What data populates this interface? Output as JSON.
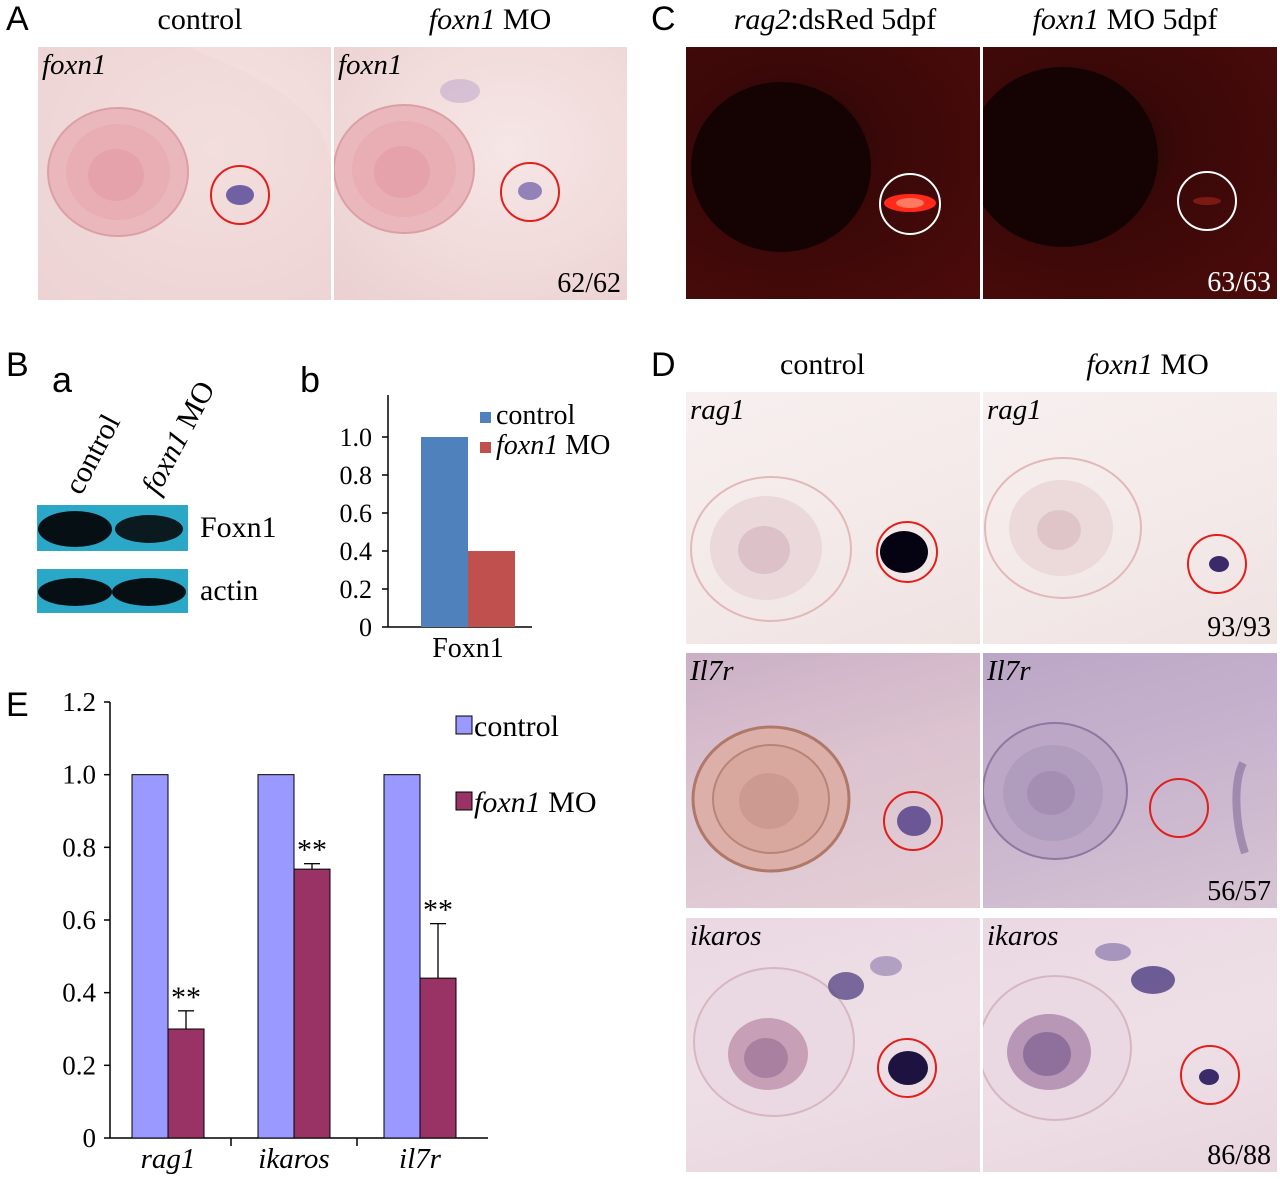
{
  "panelA": {
    "letter": "A",
    "headers": [
      {
        "gene": "",
        "rest": "control"
      },
      {
        "gene": "foxn1",
        "rest": " MO"
      }
    ],
    "images": [
      {
        "label": "foxn1",
        "count": ""
      },
      {
        "label": "foxn1",
        "count": "62/62"
      }
    ]
  },
  "panelB": {
    "letter": "B",
    "sub_a": "a",
    "sub_b": "b",
    "lanes": [
      {
        "gene": "",
        "rest": "control"
      },
      {
        "gene": "foxn1",
        "rest": " MO"
      }
    ],
    "bands": [
      "Foxn1",
      "actin"
    ]
  },
  "panelC": {
    "letter": "C",
    "headers": [
      {
        "gene": "rag2",
        "rest": ":dsRed 5dpf"
      },
      {
        "gene": "foxn1",
        "rest": " MO 5dpf"
      }
    ],
    "count": "63/63"
  },
  "panelD": {
    "letter": "D",
    "headers": [
      {
        "gene": "",
        "rest": "control"
      },
      {
        "gene": "foxn1",
        "rest": " MO"
      }
    ],
    "rows": [
      {
        "label": "rag1",
        "count": "93/93"
      },
      {
        "label": "Il7r",
        "count": "56/57"
      },
      {
        "label": "ikaros",
        "count": "86/88"
      }
    ]
  },
  "panelE": {
    "letter": "E"
  },
  "chart_data": [
    {
      "type": "bar",
      "panel": "B b",
      "categories": [
        "Foxn1"
      ],
      "series": [
        {
          "name": "control",
          "values": [
            1.0
          ],
          "color": "#4f81bd"
        },
        {
          "name": "foxn1 MO",
          "values": [
            0.4
          ],
          "color": "#c0504d"
        }
      ],
      "yticks": [
        "0",
        "0.2",
        "0.4",
        "0.6",
        "0.8",
        "1.0"
      ],
      "ylim": [
        0,
        1.0
      ],
      "legend_position": "top-right"
    },
    {
      "type": "bar",
      "panel": "E",
      "categories": [
        "rag1",
        "ikaros",
        "il7r"
      ],
      "series": [
        {
          "name": "control",
          "values": [
            1.0,
            1.0,
            1.0
          ],
          "color": "#9999ff"
        },
        {
          "name": "foxn1 MO",
          "values": [
            0.3,
            0.74,
            0.44
          ],
          "errors": [
            0.05,
            0.015,
            0.15
          ],
          "color": "#993366"
        }
      ],
      "annotations": [
        "**",
        "**",
        "**"
      ],
      "yticks": [
        "0",
        "0.2",
        "0.4",
        "0.6",
        "0.8",
        "1.0",
        "1.2"
      ],
      "ylim": [
        0,
        1.2
      ],
      "legend_position": "top-right"
    }
  ]
}
